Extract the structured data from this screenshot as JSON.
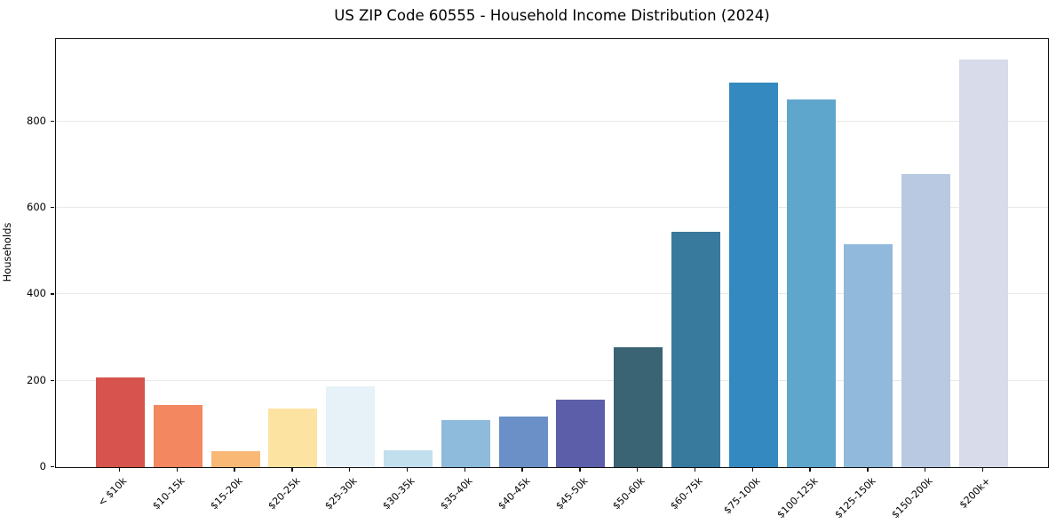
{
  "chart_data": {
    "type": "bar",
    "title": "US ZIP Code 60555 - Household Income Distribution (2024)",
    "xlabel": "",
    "ylabel": "Households",
    "categories": [
      "< $10k",
      "$10-15k",
      "$15-20k",
      "$20-25k",
      "$25-30k",
      "$30-35k",
      "$35-40k",
      "$40-45k",
      "$45-50k",
      "$50-60k",
      "$60-75k",
      "$75-100k",
      "$100-125k",
      "$125-150k",
      "$150-200k",
      "$200k+"
    ],
    "values": [
      207,
      143,
      37,
      136,
      187,
      40,
      108,
      118,
      157,
      277,
      544,
      890,
      851,
      516,
      678,
      943
    ],
    "bar_colors": [
      "#d6534e",
      "#f28760",
      "#f9b876",
      "#fce3a2",
      "#e6f2f7",
      "#c2dfed",
      "#8ebbdc",
      "#6b90c7",
      "#5c5ea9",
      "#3a6373",
      "#38799e",
      "#3389c0",
      "#5fa6cd",
      "#91b9db",
      "#b9c9e1",
      "#d8dbe9"
    ],
    "yticks": [
      0,
      200,
      400,
      600,
      800
    ],
    "ylim": [
      0,
      990
    ],
    "grid": true,
    "legend": "none",
    "background_color": "#ffffff",
    "spine_color": "#0f0f0f",
    "gridline_color": "#e9e9e9"
  }
}
